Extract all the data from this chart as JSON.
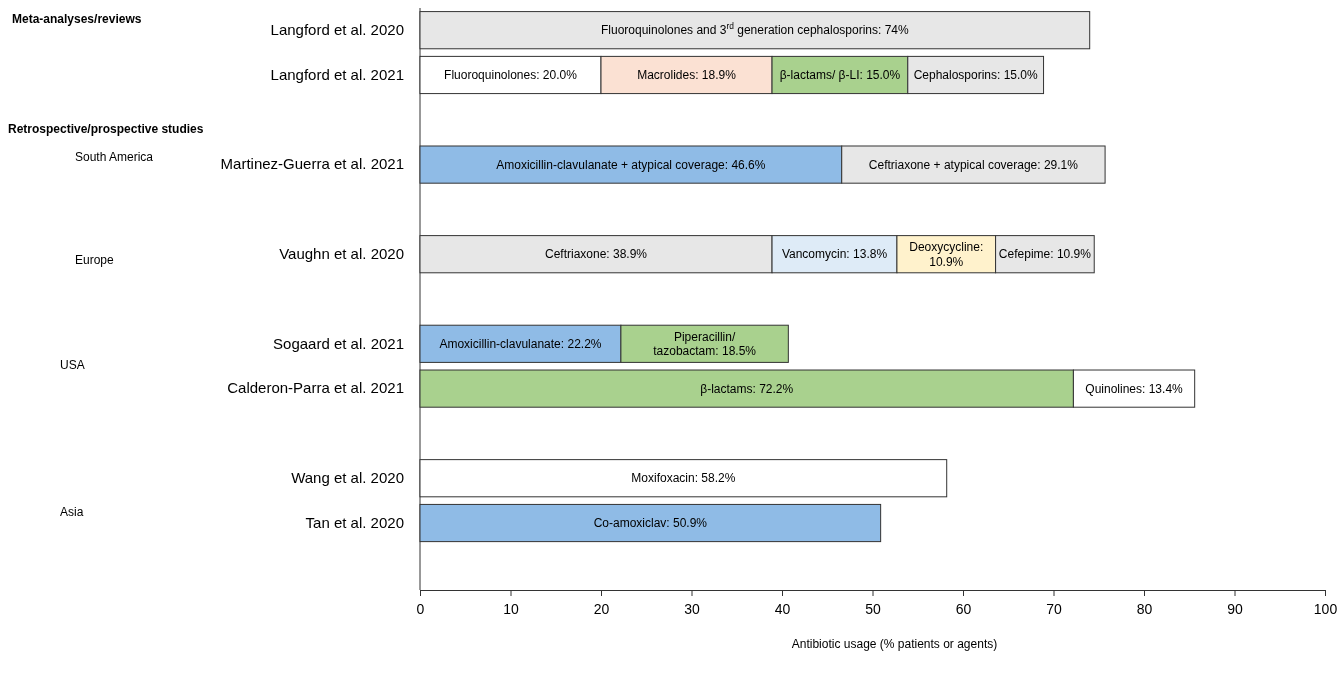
{
  "chart_data": {
    "type": "bar",
    "orientation": "horizontal",
    "stacked": true,
    "xlabel": "Antibiotic usage (% patients or agents)",
    "categories": [
      "Langford et al. 2020",
      "Langford et al. 2021",
      null,
      "Martinez-Guerra et al. 2021",
      null,
      "Vaughn et al. 2020",
      null,
      "Sogaard et al. 2021",
      "Calderon-Parra et al. 2021",
      null,
      "Wang et al. 2020",
      "Tan et al. 2020",
      null
    ],
    "xlim": [
      0,
      100
    ],
    "xticks": [
      0,
      10,
      20,
      30,
      40,
      50,
      60,
      70,
      80,
      90,
      100
    ],
    "series": [
      {
        "colors": [
          "#e7e7e7",
          "#ffffff",
          null,
          "#8fbbe6",
          null,
          "#e7e7e7",
          null,
          "#8fbbe6",
          "#a9d18e",
          null,
          "#ffffff",
          "#8fbbe6",
          null
        ],
        "values": [
          74,
          20.0,
          null,
          46.6,
          null,
          38.9,
          null,
          22.2,
          72.2,
          null,
          58.2,
          50.9,
          null
        ],
        "value_labels": [
          "Fluoroquinolones and 3$^{rd}$ generation cephalosporins: 74%",
          "Fluoroquinolones: 20.0%",
          null,
          "Amoxicillin-clavulanate + atypical coverage: 46.6%",
          null,
          "Ceftriaxone: 38.9%",
          null,
          "Amoxicillin-clavulanate: 22.2%",
          "β-lactams: 72.2%",
          null,
          "Moxifoxacin: 58.2%",
          "Co-amoxiclav: 50.9%",
          null
        ]
      },
      {
        "colors": [
          null,
          "#fbe1d3",
          null,
          "#e7e7e7",
          null,
          "#deebf7",
          null,
          "#a9d18e",
          "#ffffff",
          null,
          null,
          null,
          null
        ],
        "values": [
          null,
          18.9,
          null,
          29.1,
          null,
          13.8,
          null,
          18.5,
          13.4,
          null,
          null,
          null,
          null
        ],
        "value_labels": [
          null,
          "Macrolides: 18.9%",
          null,
          "Ceftriaxone  + atypical coverage: 29.1%",
          null,
          "Vancomycin: 13.8%",
          null,
          "Piperacillin/ tazobactam: 18.5%",
          "Quinolines: 13.4%",
          null,
          null,
          null,
          null
        ]
      },
      {
        "colors": [
          null,
          "#a9d18e",
          null,
          null,
          null,
          "#fff2cc",
          null,
          null,
          null,
          null,
          null,
          null,
          null
        ],
        "values": [
          null,
          15.0,
          null,
          null,
          null,
          10.9,
          null,
          null,
          null,
          null,
          null,
          null,
          null
        ],
        "value_labels": [
          null,
          "β-lactams/ β-LI: 15.0%",
          null,
          null,
          null,
          "Deoxycycline: 10.9%",
          null,
          null,
          null,
          null,
          null,
          null,
          null
        ]
      },
      {
        "colors": [
          null,
          "#e7e7e7",
          null,
          null,
          null,
          "#e7e7e7",
          null,
          null,
          null,
          null,
          null,
          null,
          null
        ],
        "values": [
          null,
          15.0,
          null,
          null,
          null,
          10.9,
          null,
          null,
          null,
          null,
          null,
          null,
          null
        ],
        "value_labels": [
          null,
          "Cephalosporins: 15.0%",
          null,
          null,
          null,
          "Cefepime: 10.9%",
          null,
          null,
          null,
          null,
          null,
          null,
          null
        ]
      }
    ],
    "annotations": [
      "Meta-analyses/reviews",
      "Retrospective/prospective studies",
      "South America",
      "Europe",
      "USA",
      "Asia"
    ]
  }
}
